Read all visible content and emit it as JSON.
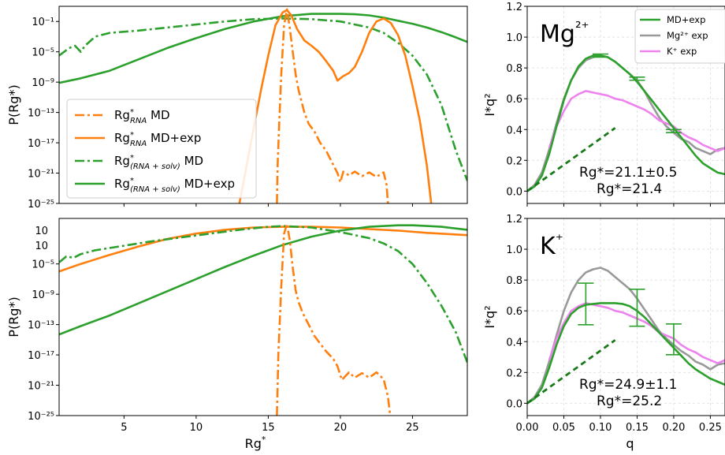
{
  "colors": {
    "orange": "#ff7f0e",
    "green": "#2ca02c",
    "darkgreen": "#1a7a1a",
    "gray": "#999999",
    "pink": "#ee82ee"
  },
  "chart_data": [
    {
      "id": "top-left",
      "type": "line",
      "ylabel": "P(Rg*)",
      "xlabel": "",
      "yscale": "log",
      "xlim": [
        0.5,
        28.8
      ],
      "ylim_exp": [
        -25,
        1
      ],
      "yticks": [
        {
          "exp": -1,
          "label": "10⁻¹"
        },
        {
          "exp": -5,
          "label": "10⁻⁵"
        },
        {
          "exp": -9,
          "label": "10⁻⁹"
        },
        {
          "exp": -13,
          "label": "10⁻¹³"
        },
        {
          "exp": -17,
          "label": "10⁻¹⁷"
        },
        {
          "exp": -21,
          "label": "10⁻²¹"
        },
        {
          "exp": -25,
          "label": "10⁻²⁵"
        }
      ],
      "legend": {
        "position": "lower-left",
        "entries": [
          {
            "label": "Rg*RNA MD",
            "main": "Rg",
            "sup": "*",
            "sub": "RNA",
            "rest": " MD",
            "color": "orange",
            "dash": "dashdot"
          },
          {
            "label": "Rg*RNA MD+exp",
            "main": "Rg",
            "sup": "*",
            "sub": "RNA",
            "rest": " MD+exp",
            "color": "orange",
            "dash": "solid"
          },
          {
            "label": "Rg*(RNA+solv) MD",
            "main": "Rg",
            "sup": "*",
            "sub": "(RNA + solv)",
            "rest": " MD",
            "color": "green",
            "dash": "dashdot"
          },
          {
            "label": "Rg*(RNA+solv) MD+exp",
            "main": "Rg",
            "sup": "*",
            "sub": "(RNA + solv)",
            "rest": " MD+exp",
            "color": "green",
            "dash": "solid"
          }
        ]
      },
      "series": [
        {
          "color": "green",
          "dash": "dashdot",
          "x": [
            0.5,
            1.2,
            1.6,
            2.0,
            2.3,
            3,
            4,
            6,
            8,
            10,
            12,
            14,
            16,
            18,
            20,
            22,
            23,
            24,
            25,
            26,
            27,
            28,
            28.8
          ],
          "y": [
            -5.5,
            -4.5,
            -4.2,
            -5.0,
            -4.2,
            -3.0,
            -2.5,
            -2.2,
            -1.8,
            -1.4,
            -1.0,
            -0.7,
            -0.6,
            -0.7,
            -1.0,
            -1.8,
            -2.5,
            -3.8,
            -5.5,
            -8,
            -12,
            -18,
            -22
          ]
        },
        {
          "color": "green",
          "dash": "solid",
          "x": [
            0.5,
            2,
            4,
            6,
            8,
            10,
            12,
            14,
            16,
            18,
            20,
            21,
            22,
            23,
            24,
            25,
            26,
            27,
            28,
            28.8
          ],
          "y": [
            -9.1,
            -8.5,
            -7.5,
            -6,
            -4.5,
            -3.2,
            -2.0,
            -1.0,
            -0.3,
            0.0,
            0.0,
            -0.05,
            -0.2,
            -0.5,
            -0.9,
            -1.3,
            -1.8,
            -2.4,
            -3.1,
            -3.7
          ]
        },
        {
          "color": "orange",
          "dash": "solid",
          "x": [
            13.0,
            13.6,
            14.0,
            14.5,
            15.0,
            15.5,
            16.0,
            16.3,
            16.6,
            17.0,
            17.5,
            18.0,
            18.5,
            19.0,
            19.5,
            19.8,
            20.2,
            20.6,
            21.0,
            21.5,
            22.0,
            22.5,
            23.0,
            23.5,
            24.0,
            24.5,
            25.0,
            25.5,
            26.0,
            26.3
          ],
          "y": [
            -25,
            -19,
            -15,
            -10,
            -5.5,
            -1.5,
            0.2,
            0.5,
            -0.2,
            -2.0,
            -3.5,
            -4.2,
            -5.0,
            -6.2,
            -7.5,
            -8.8,
            -8.2,
            -7.8,
            -7.0,
            -5.0,
            -2.5,
            -1.0,
            -0.6,
            -1.2,
            -2.8,
            -5.5,
            -9.5,
            -14,
            -20,
            -25
          ]
        },
        {
          "color": "orange",
          "dash": "dashdot",
          "x": [
            15.6,
            15.65,
            15.75,
            15.9,
            16.1,
            16.3,
            16.5,
            16.7,
            16.9,
            17.1,
            17.3,
            17.5,
            17.8,
            18.2,
            18.6,
            19.0,
            19.4,
            19.8,
            20.0,
            20.2,
            20.6,
            21.0,
            21.5,
            22.0,
            22.5,
            23.0,
            23.2,
            23.3
          ],
          "y": [
            -25,
            -20,
            -15,
            -8,
            -1.5,
            0.6,
            -2,
            -5,
            -8,
            -10,
            -11.5,
            -13,
            -14.5,
            -15.5,
            -17,
            -18,
            -19.5,
            -21,
            -22.2,
            -20.8,
            -21.3,
            -20.8,
            -21.4,
            -20.9,
            -21.5,
            -20.9,
            -22.5,
            -25
          ]
        }
      ]
    },
    {
      "id": "bottom-left",
      "type": "line",
      "ylabel": "P(Rg*)",
      "xlabel": "Rg*",
      "yscale": "log",
      "xlim": [
        0.5,
        28.8
      ],
      "ylim_exp": [
        -25,
        1
      ],
      "xticks": [
        5,
        10,
        15,
        20,
        25
      ],
      "yticks": [
        {
          "exp": -5,
          "label": "10⁻⁵"
        },
        {
          "exp": -9,
          "label": "10⁻⁹"
        },
        {
          "exp": -13,
          "label": "10⁻¹³"
        },
        {
          "exp": -17,
          "label": "10⁻¹⁷"
        },
        {
          "exp": -21,
          "label": "10⁻²¹"
        },
        {
          "exp": -25,
          "label": "10⁻²⁵"
        }
      ],
      "top_labels": [
        "10",
        "10"
      ],
      "series": [
        {
          "color": "orange",
          "dash": "solid",
          "x": [
            0.5,
            2,
            4,
            6,
            8,
            10,
            12,
            14,
            16,
            18,
            20,
            22,
            24,
            26,
            28.8
          ],
          "y": [
            -6.0,
            -5.0,
            -3.8,
            -2.7,
            -1.7,
            -1.0,
            -0.5,
            -0.2,
            -0.1,
            -0.1,
            -0.2,
            -0.4,
            -0.6,
            -0.9,
            -1.2
          ]
        },
        {
          "color": "green",
          "dash": "dashdot",
          "x": [
            0.5,
            1.0,
            1.5,
            2.0,
            3,
            5,
            7,
            9,
            11,
            13,
            15,
            16,
            18,
            20,
            22,
            23,
            24,
            25,
            26,
            27,
            28,
            28.8
          ],
          "y": [
            -4.8,
            -4.0,
            -4.2,
            -3.7,
            -3.2,
            -2.6,
            -2.0,
            -1.5,
            -1.0,
            -0.5,
            -0.1,
            0.0,
            -0.2,
            -0.8,
            -1.6,
            -2.3,
            -3.3,
            -5.0,
            -7.5,
            -10.5,
            -14,
            -18
          ]
        },
        {
          "color": "green",
          "dash": "solid",
          "x": [
            0.5,
            2,
            4,
            6,
            8,
            10,
            12,
            14,
            16,
            18,
            20,
            22,
            24,
            25,
            26,
            27,
            28.8
          ],
          "y": [
            -14.3,
            -13.2,
            -11.8,
            -10.2,
            -8.6,
            -7.0,
            -5.4,
            -3.9,
            -2.5,
            -1.4,
            -0.6,
            -0.1,
            0.1,
            0.1,
            0.0,
            -0.1,
            -0.5
          ]
        },
        {
          "color": "orange",
          "dash": "dashdot",
          "x": [
            15.6,
            15.7,
            15.9,
            16.1,
            16.3,
            16.5,
            16.7,
            16.9,
            17.1,
            17.4,
            17.8,
            18.2,
            18.6,
            19.0,
            19.5,
            19.8,
            20.1,
            20.6,
            21.0,
            21.5,
            22.0,
            22.5,
            23.0,
            23.3,
            23.45
          ],
          "y": [
            -25,
            -17,
            -8,
            -1,
            0.3,
            -2,
            -5.5,
            -8.5,
            -10,
            -11.5,
            -13,
            -14.5,
            -15.5,
            -16.5,
            -17.5,
            -18.5,
            -20.3,
            -19.3,
            -20.0,
            -19.4,
            -20.0,
            -19.3,
            -20.2,
            -22.5,
            -25
          ]
        }
      ]
    },
    {
      "id": "top-right",
      "type": "line",
      "ylabel": "I*q²",
      "xlabel": "",
      "xlim": [
        0,
        0.27
      ],
      "ylim": [
        -0.08,
        1.2
      ],
      "yticks": [
        "0.0",
        "0.2",
        "0.4",
        "0.6",
        "0.8",
        "1.0",
        "1.2"
      ],
      "panel_label": "Mg²⁺",
      "annotations": [
        "Rg*=21.1±0.5",
        "Rg*=21.4"
      ],
      "legend": {
        "position": "upper-right",
        "entries": [
          {
            "label": "MD+exp",
            "color": "green"
          },
          {
            "label": "Mg²⁺ exp",
            "color": "gray"
          },
          {
            "label": "K⁺ exp",
            "color": "pink"
          }
        ]
      },
      "series": [
        {
          "color": "gray",
          "x": [
            0,
            0.01,
            0.02,
            0.03,
            0.04,
            0.05,
            0.06,
            0.07,
            0.08,
            0.09,
            0.1,
            0.11,
            0.12,
            0.13,
            0.14,
            0.15,
            0.16,
            0.17,
            0.18,
            0.19,
            0.2,
            0.21,
            0.22,
            0.23,
            0.24,
            0.25,
            0.26,
            0.27
          ],
          "y": [
            0,
            0.04,
            0.12,
            0.27,
            0.44,
            0.6,
            0.72,
            0.8,
            0.85,
            0.87,
            0.88,
            0.87,
            0.84,
            0.8,
            0.76,
            0.72,
            0.65,
            0.56,
            0.48,
            0.42,
            0.38,
            0.34,
            0.32,
            0.28,
            0.26,
            0.24,
            0.27,
            0.28
          ]
        },
        {
          "color": "pink",
          "x": [
            0.03,
            0.04,
            0.05,
            0.06,
            0.07,
            0.08,
            0.09,
            0.1,
            0.11,
            0.12,
            0.13,
            0.14,
            0.15,
            0.16,
            0.17,
            0.18,
            0.19,
            0.2,
            0.21,
            0.22,
            0.23,
            0.24,
            0.25,
            0.26,
            0.27
          ],
          "y": [
            0.28,
            0.42,
            0.52,
            0.6,
            0.63,
            0.65,
            0.64,
            0.63,
            0.62,
            0.6,
            0.59,
            0.57,
            0.55,
            0.53,
            0.5,
            0.46,
            0.44,
            0.42,
            0.38,
            0.35,
            0.33,
            0.3,
            0.28,
            0.26,
            0.28
          ]
        },
        {
          "color": "green",
          "x": [
            0,
            0.01,
            0.02,
            0.03,
            0.04,
            0.05,
            0.06,
            0.07,
            0.08,
            0.09,
            0.1,
            0.11,
            0.12,
            0.13,
            0.14,
            0.15,
            0.16,
            0.17,
            0.18,
            0.19,
            0.2,
            0.21,
            0.22,
            0.23,
            0.24,
            0.25,
            0.26,
            0.27
          ],
          "y": [
            0,
            0.03,
            0.1,
            0.24,
            0.42,
            0.59,
            0.72,
            0.81,
            0.86,
            0.88,
            0.88,
            0.87,
            0.84,
            0.8,
            0.76,
            0.71,
            0.65,
            0.59,
            0.53,
            0.47,
            0.41,
            0.35,
            0.29,
            0.23,
            0.18,
            0.15,
            0.12,
            0.11
          ]
        },
        {
          "color": "darkgreen",
          "dash": "dash",
          "x": [
            0,
            0.12
          ],
          "y": [
            0,
            0.41
          ]
        }
      ],
      "errorbars": [
        {
          "x": 0.1,
          "y": 0.88,
          "err": 0.01
        },
        {
          "x": 0.15,
          "y": 0.73,
          "err": 0.01
        },
        {
          "x": 0.2,
          "y": 0.39,
          "err": 0.01
        }
      ]
    },
    {
      "id": "bottom-right",
      "type": "line",
      "ylabel": "I*q²",
      "xlabel": "q",
      "xlim": [
        0,
        0.27
      ],
      "ylim": [
        -0.08,
        1.2
      ],
      "xticks": [
        "0.00",
        "0.05",
        "0.10",
        "0.15",
        "0.20",
        "0.25"
      ],
      "yticks": [
        "0.0",
        "0.2",
        "0.4",
        "0.6",
        "0.8",
        "1.0",
        "1.2"
      ],
      "panel_label": "K⁺",
      "annotations": [
        "Rg*=24.9±1.1",
        "Rg*=25.2"
      ],
      "series": [
        {
          "color": "gray",
          "x": [
            0,
            0.01,
            0.02,
            0.03,
            0.04,
            0.05,
            0.06,
            0.07,
            0.08,
            0.09,
            0.1,
            0.11,
            0.12,
            0.13,
            0.14,
            0.15,
            0.16,
            0.17,
            0.18,
            0.19,
            0.2,
            0.21,
            0.22,
            0.23,
            0.24,
            0.25,
            0.26,
            0.27
          ],
          "y": [
            0,
            0.04,
            0.12,
            0.27,
            0.44,
            0.6,
            0.72,
            0.8,
            0.85,
            0.87,
            0.88,
            0.86,
            0.82,
            0.78,
            0.74,
            0.68,
            0.61,
            0.54,
            0.47,
            0.42,
            0.38,
            0.34,
            0.31,
            0.27,
            0.25,
            0.22,
            0.25,
            0.26
          ]
        },
        {
          "color": "pink",
          "x": [
            0.03,
            0.04,
            0.05,
            0.06,
            0.07,
            0.08,
            0.09,
            0.1,
            0.11,
            0.12,
            0.13,
            0.14,
            0.15,
            0.16,
            0.17,
            0.18,
            0.19,
            0.2,
            0.21,
            0.22,
            0.23,
            0.24,
            0.25,
            0.26,
            0.27
          ],
          "y": [
            0.28,
            0.42,
            0.52,
            0.6,
            0.63,
            0.65,
            0.64,
            0.63,
            0.62,
            0.6,
            0.59,
            0.57,
            0.55,
            0.53,
            0.5,
            0.46,
            0.44,
            0.42,
            0.38,
            0.35,
            0.33,
            0.3,
            0.28,
            0.26,
            0.28
          ]
        },
        {
          "color": "green",
          "x": [
            0,
            0.01,
            0.02,
            0.03,
            0.04,
            0.05,
            0.06,
            0.07,
            0.08,
            0.09,
            0.1,
            0.11,
            0.12,
            0.13,
            0.14,
            0.15,
            0.16,
            0.17,
            0.18,
            0.19,
            0.2,
            0.21,
            0.22,
            0.23,
            0.24,
            0.25,
            0.26,
            0.27
          ],
          "y": [
            0,
            0.03,
            0.1,
            0.23,
            0.38,
            0.5,
            0.58,
            0.62,
            0.64,
            0.645,
            0.65,
            0.65,
            0.65,
            0.645,
            0.63,
            0.6,
            0.56,
            0.51,
            0.46,
            0.41,
            0.36,
            0.31,
            0.26,
            0.22,
            0.19,
            0.16,
            0.14,
            0.12
          ]
        },
        {
          "color": "darkgreen",
          "dash": "dash",
          "x": [
            0,
            0.12
          ],
          "y": [
            0,
            0.41
          ]
        }
      ],
      "errorbars": [
        {
          "x": 0.08,
          "y": 0.645,
          "err": 0.135
        },
        {
          "x": 0.15,
          "y": 0.62,
          "err": 0.12
        },
        {
          "x": 0.2,
          "y": 0.415,
          "err": 0.1
        }
      ]
    }
  ]
}
